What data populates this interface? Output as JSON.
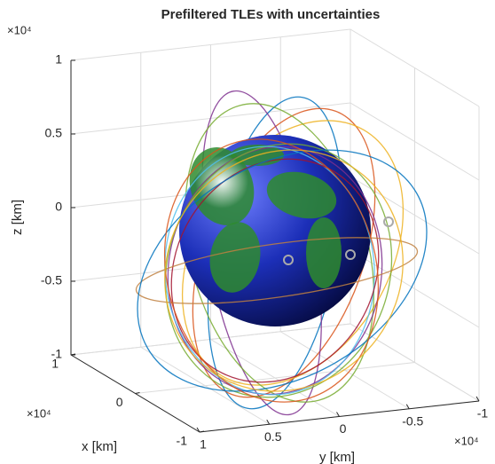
{
  "chart_data": {
    "type": "line3d",
    "title": "Prefiltered TLEs with uncertainties",
    "xlabel": "x [km]",
    "ylabel": "y [km]",
    "zlabel": "z [km]",
    "exponent_label": "×10⁴",
    "xlim": [
      -1,
      1
    ],
    "ylim": [
      -1,
      1
    ],
    "zlim": [
      -1,
      1
    ],
    "xticks": [
      -1,
      0,
      1
    ],
    "yticks": [
      -1,
      -0.5,
      0,
      0.5,
      1
    ],
    "zticks": [
      -1,
      -0.5,
      0,
      0.5,
      1
    ],
    "grid": true
  }
}
